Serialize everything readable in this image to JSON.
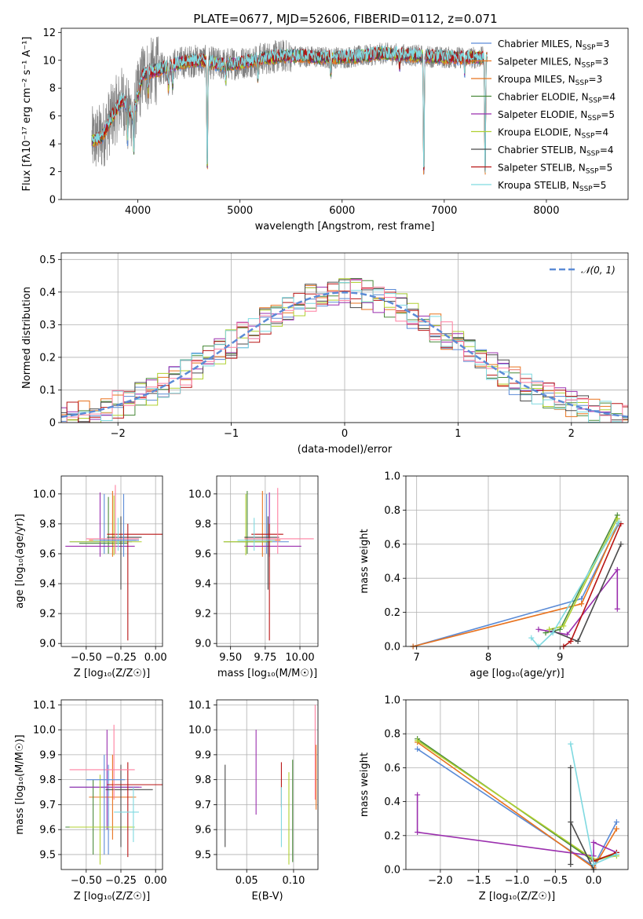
{
  "colors": [
    "#5b8bd6",
    "#e8731f",
    "#4a8a3a",
    "#9b2fae",
    "#b0d030",
    "#4a4a4a",
    "#b81414",
    "#7fd9e0",
    "#ff7fa0",
    "#808080"
  ],
  "chart_data": [
    {
      "id": "spectrum",
      "type": "line",
      "title": "PLATE=0677, MJD=52606, FIBERID=0112, z=0.071",
      "xlabel": "wavelength [Angstrom, rest frame]",
      "ylabel": "Flux [fλ10⁻¹⁷ erg cm⁻² s⁻¹ A⁻¹]",
      "xlim": [
        3250,
        8800
      ],
      "ylim": [
        0,
        12.3
      ],
      "xticks": [
        4000,
        5000,
        6000,
        7000,
        8000
      ],
      "yticks": [
        0,
        2,
        4,
        6,
        8,
        10,
        12
      ],
      "grid": false,
      "legend_position": "upper right",
      "data_series": {
        "name": "data",
        "color": "#808080"
      },
      "legend": [
        {
          "label": "Chabrier MILES, N_SSP=3",
          "color_index": 0
        },
        {
          "label": "Salpeter MILES, N_SSP=3",
          "color_index": 1
        },
        {
          "label": "Kroupa MILES, N_SSP=3",
          "color_index": 1
        },
        {
          "label": "Chabrier ELODIE, N_SSP=4",
          "color_index": 2
        },
        {
          "label": "Salpeter ELODIE, N_SSP=5",
          "color_index": 3
        },
        {
          "label": "Kroupa ELODIE, N_SSP=4",
          "color_index": 4
        },
        {
          "label": "Chabrier STELIB, N_SSP=4",
          "color_index": 5
        },
        {
          "label": "Salpeter STELIB, N_SSP=5",
          "color_index": 6
        },
        {
          "label": "Kroupa STELIB, N_SSP=5",
          "color_index": 7
        }
      ],
      "continuum_knots": [
        [
          3550,
          4.2
        ],
        [
          3650,
          4.5
        ],
        [
          3750,
          6.0
        ],
        [
          3850,
          7.2
        ],
        [
          3950,
          6.0
        ],
        [
          4050,
          9.0
        ],
        [
          4200,
          9.3
        ],
        [
          4400,
          9.8
        ],
        [
          4600,
          10.0
        ],
        [
          4800,
          9.7
        ],
        [
          5000,
          9.8
        ],
        [
          5200,
          10.1
        ],
        [
          5400,
          10.3
        ],
        [
          5600,
          10.3
        ],
        [
          5800,
          10.2
        ],
        [
          6000,
          10.2
        ],
        [
          6200,
          10.3
        ],
        [
          6400,
          10.5
        ],
        [
          6600,
          10.4
        ],
        [
          6800,
          10.3
        ],
        [
          7000,
          10.2
        ],
        [
          7200,
          10.2
        ],
        [
          7400,
          10.2
        ]
      ],
      "features": [
        [
          3900,
          -2.5
        ],
        [
          3960,
          -3.0
        ],
        [
          4102,
          -1.3
        ],
        [
          4300,
          -1.6
        ],
        [
          4340,
          -1.5
        ],
        [
          4680,
          -8.0
        ],
        [
          4861,
          -1.2
        ],
        [
          5175,
          -1.4
        ],
        [
          5890,
          -1.3
        ],
        [
          6563,
          -0.9
        ],
        [
          6800,
          -9.0
        ],
        [
          7200,
          -1.0
        ],
        [
          7400,
          -9.0
        ]
      ]
    },
    {
      "id": "residuals",
      "type": "histogram",
      "xlabel": "(data-model)/error",
      "ylabel": "Normed distribution",
      "xlim": [
        -2.5,
        2.5
      ],
      "ylim": [
        0,
        0.52
      ],
      "xticks": [
        -2,
        -1,
        0,
        1,
        2
      ],
      "yticks": [
        0.0,
        0.1,
        0.2,
        0.3,
        0.4,
        0.5
      ],
      "grid": true,
      "legend_position": "upper right",
      "legend": [
        {
          "label": "𝒩(0, 1)",
          "style": "dashed",
          "color": "#5b8bd6"
        }
      ],
      "bin_width": 0.1
    },
    {
      "id": "age-vs-Z",
      "type": "errorbar",
      "xlabel": "Z [log₁₀(Z/Z☉)]",
      "ylabel": "age  [log₁₀(age/yr)]",
      "xlim": [
        -0.68,
        0.05
      ],
      "ylim": [
        8.98,
        10.12
      ],
      "xticks": [
        -0.5,
        -0.25,
        0.0
      ],
      "xticklabels": [
        "−0.50",
        "−0.25",
        "0.00"
      ],
      "yticks": [
        9.0,
        9.2,
        9.4,
        9.6,
        9.8,
        10.0
      ],
      "yticklabels": [
        "9.0",
        "9.2",
        "9.4",
        "9.6",
        "9.8",
        "10.0"
      ],
      "grid": true,
      "points": [
        {
          "x": -0.37,
          "y": 9.68,
          "xlo": -0.62,
          "xhi": -0.17,
          "ylo": 9.6,
          "yhi": 10.0,
          "c": 0
        },
        {
          "x": -0.31,
          "y": 9.69,
          "xlo": -0.48,
          "xhi": -0.14,
          "ylo": 9.58,
          "yhi": 10.02,
          "c": 1
        },
        {
          "x": -0.34,
          "y": 9.67,
          "xlo": -0.55,
          "xhi": -0.2,
          "ylo": 9.6,
          "yhi": 9.98,
          "c": 2
        },
        {
          "x": -0.4,
          "y": 9.65,
          "xlo": -0.65,
          "xhi": -0.15,
          "ylo": 9.58,
          "yhi": 10.01,
          "c": 3
        },
        {
          "x": -0.3,
          "y": 9.68,
          "xlo": -0.62,
          "xhi": -0.1,
          "ylo": 9.59,
          "yhi": 9.99,
          "c": 4
        },
        {
          "x": -0.25,
          "y": 9.71,
          "xlo": -0.35,
          "xhi": -0.1,
          "ylo": 9.36,
          "yhi": 9.85,
          "c": 5
        },
        {
          "x": -0.2,
          "y": 9.73,
          "xlo": -0.35,
          "xhi": 0.05,
          "ylo": 9.02,
          "yhi": 9.8,
          "c": 6
        },
        {
          "x": -0.27,
          "y": 9.69,
          "xlo": -0.45,
          "xhi": -0.15,
          "ylo": 9.62,
          "yhi": 9.84,
          "c": 7
        },
        {
          "x": -0.29,
          "y": 9.7,
          "xlo": -0.5,
          "xhi": -0.12,
          "ylo": 9.6,
          "yhi": 10.06,
          "c": 8
        },
        {
          "x": -0.23,
          "y": 9.69,
          "xlo": -0.4,
          "xhi": -0.12,
          "ylo": 9.58,
          "yhi": 10.0,
          "c": 0
        }
      ]
    },
    {
      "id": "age-vs-mass",
      "type": "errorbar",
      "xlabel": "mass [log₁₀(M/M☉)]",
      "xlim": [
        9.4,
        10.13
      ],
      "ylim": [
        8.98,
        10.12
      ],
      "xticks": [
        9.5,
        9.75,
        10.0
      ],
      "xticklabels": [
        "9.50",
        "9.75",
        "10.00"
      ],
      "yticks": [
        9.0,
        9.2,
        9.4,
        9.6,
        9.8,
        10.0
      ],
      "yticklabels": [
        "9.0",
        "9.2",
        "9.4",
        "9.6",
        "9.8",
        "10.0"
      ],
      "grid": true,
      "points": [
        {
          "x": 9.76,
          "y": 9.68,
          "xlo": 9.55,
          "xhi": 9.92,
          "ylo": 9.6,
          "yhi": 10.0,
          "c": 0
        },
        {
          "x": 9.73,
          "y": 9.69,
          "xlo": 9.62,
          "xhi": 9.86,
          "ylo": 9.58,
          "yhi": 10.02,
          "c": 1
        },
        {
          "x": 9.62,
          "y": 9.68,
          "xlo": 9.45,
          "xhi": 9.78,
          "ylo": 9.6,
          "yhi": 10.02,
          "c": 2
        },
        {
          "x": 9.78,
          "y": 9.65,
          "xlo": 9.6,
          "xhi": 10.01,
          "ylo": 9.58,
          "yhi": 10.01,
          "c": 3
        },
        {
          "x": 9.61,
          "y": 9.68,
          "xlo": 9.45,
          "xhi": 9.8,
          "ylo": 9.59,
          "yhi": 10.0,
          "c": 4
        },
        {
          "x": 9.77,
          "y": 9.71,
          "xlo": 9.6,
          "xhi": 9.85,
          "ylo": 9.36,
          "yhi": 9.85,
          "c": 5
        },
        {
          "x": 9.78,
          "y": 9.73,
          "xlo": 9.65,
          "xhi": 9.88,
          "ylo": 9.02,
          "yhi": 9.8,
          "c": 6
        },
        {
          "x": 9.67,
          "y": 9.69,
          "xlo": 9.55,
          "xhi": 9.82,
          "ylo": 9.62,
          "yhi": 9.84,
          "c": 7
        },
        {
          "x": 9.84,
          "y": 9.7,
          "xlo": 9.6,
          "xhi": 10.1,
          "ylo": 9.6,
          "yhi": 10.04,
          "c": 8
        }
      ]
    },
    {
      "id": "weight-vs-age",
      "type": "line",
      "xlabel": "age  [log₁₀(age/yr)]",
      "ylabel": "mass weight",
      "xlim": [
        6.85,
        9.95
      ],
      "ylim": [
        0,
        1.0
      ],
      "xticks": [
        7,
        8,
        9
      ],
      "yticks": [
        0.0,
        0.2,
        0.4,
        0.6,
        0.8,
        1.0
      ],
      "yticklabels": [
        "0.0",
        "0.2",
        "0.4",
        "0.6",
        "0.8",
        "1.0"
      ],
      "grid": true,
      "series": [
        {
          "c": 0,
          "pts": [
            [
              6.95,
              0.0
            ],
            [
              9.3,
              0.28
            ],
            [
              9.82,
              0.72
            ]
          ]
        },
        {
          "c": 1,
          "pts": [
            [
              6.95,
              0.0
            ],
            [
              9.3,
              0.25
            ],
            [
              9.82,
              0.73
            ]
          ]
        },
        {
          "c": 2,
          "pts": [
            [
              8.8,
              0.08
            ],
            [
              9.0,
              0.1
            ],
            [
              9.8,
              0.77
            ]
          ]
        },
        {
          "c": 3,
          "pts": [
            [
              8.7,
              0.1
            ],
            [
              9.1,
              0.07
            ],
            [
              9.8,
              0.45
            ],
            [
              9.8,
              0.22
            ]
          ]
        },
        {
          "c": 4,
          "pts": [
            [
              8.85,
              0.1
            ],
            [
              9.05,
              0.12
            ],
            [
              9.8,
              0.75
            ]
          ]
        },
        {
          "c": 5,
          "pts": [
            [
              8.9,
              0.09
            ],
            [
              9.25,
              0.03
            ],
            [
              9.85,
              0.6
            ]
          ]
        },
        {
          "c": 6,
          "pts": [
            [
              9.05,
              0.0
            ],
            [
              9.15,
              0.03
            ],
            [
              9.85,
              0.72
            ]
          ]
        },
        {
          "c": 7,
          "pts": [
            [
              8.6,
              0.05
            ],
            [
              8.7,
              0.0
            ],
            [
              8.9,
              0.08
            ],
            [
              9.82,
              0.73
            ]
          ]
        }
      ]
    },
    {
      "id": "mass-vs-Z",
      "type": "errorbar",
      "xlabel": "Z [log₁₀(Z/Z☉)]",
      "ylabel": "mass [log₁₀(M/M☉)]",
      "xlim": [
        -0.68,
        0.05
      ],
      "ylim": [
        9.44,
        10.12
      ],
      "xticks": [
        -0.5,
        -0.25,
        0.0
      ],
      "xticklabels": [
        "−0.50",
        "−0.25",
        "0.00"
      ],
      "yticks": [
        9.5,
        9.6,
        9.7,
        9.8,
        9.9,
        10.0,
        10.1
      ],
      "yticklabels": [
        "9.5",
        "9.6",
        "9.7",
        "9.8",
        "9.9",
        "10.0",
        "10.1"
      ],
      "grid": true,
      "points": [
        {
          "x": -0.34,
          "y": 9.77,
          "xlo": -0.62,
          "xhi": -0.12,
          "ylo": 9.5,
          "yhi": 9.86,
          "c": 0
        },
        {
          "x": -0.31,
          "y": 9.73,
          "xlo": -0.48,
          "xhi": -0.14,
          "ylo": 9.56,
          "yhi": 9.9,
          "c": 1
        },
        {
          "x": -0.45,
          "y": 9.61,
          "xlo": -0.65,
          "xhi": -0.2,
          "ylo": 9.5,
          "yhi": 9.8,
          "c": 2
        },
        {
          "x": -0.35,
          "y": 9.77,
          "xlo": -0.62,
          "xhi": -0.1,
          "ylo": 9.6,
          "yhi": 10.0,
          "c": 3
        },
        {
          "x": -0.4,
          "y": 9.61,
          "xlo": -0.62,
          "xhi": -0.15,
          "ylo": 9.46,
          "yhi": 9.82,
          "c": 4
        },
        {
          "x": -0.25,
          "y": 9.76,
          "xlo": -0.36,
          "xhi": -0.02,
          "ylo": 9.53,
          "yhi": 9.86,
          "c": 5
        },
        {
          "x": -0.2,
          "y": 9.78,
          "xlo": -0.35,
          "xhi": 0.05,
          "ylo": 9.49,
          "yhi": 9.87,
          "c": 6
        },
        {
          "x": -0.16,
          "y": 9.67,
          "xlo": -0.3,
          "xhi": -0.12,
          "ylo": 9.55,
          "yhi": 9.77,
          "c": 7
        },
        {
          "x": -0.3,
          "y": 9.84,
          "xlo": -0.62,
          "xhi": -0.15,
          "ylo": 9.72,
          "yhi": 10.02,
          "c": 8
        },
        {
          "x": -0.37,
          "y": 9.8,
          "xlo": -0.5,
          "xhi": -0.22,
          "ylo": 9.5,
          "yhi": 9.9,
          "c": 0
        }
      ]
    },
    {
      "id": "mass-vs-ebv",
      "type": "errorbar",
      "xlabel": "E(B-V)",
      "xlim": [
        0.018,
        0.126
      ],
      "ylim": [
        9.44,
        10.12
      ],
      "xticks": [
        0.05,
        0.1
      ],
      "xticklabels": [
        "0.05",
        "0.10"
      ],
      "yticks": [
        9.5,
        9.6,
        9.7,
        9.8,
        9.9,
        10.0,
        10.1
      ],
      "yticklabels": [
        "9.5",
        "9.6",
        "9.7",
        "9.8",
        "9.9",
        "10.0",
        "10.1"
      ],
      "grid": true,
      "points": [
        {
          "x": 0.027,
          "y": 9.7,
          "ylo": 9.53,
          "yhi": 9.86,
          "c": 5
        },
        {
          "x": 0.06,
          "y": 9.83,
          "ylo": 9.66,
          "yhi": 10.0,
          "c": 3
        },
        {
          "x": 0.087,
          "y": 9.78,
          "ylo": 9.69,
          "yhi": 9.87,
          "c": 6
        },
        {
          "x": 0.087,
          "y": 9.65,
          "ylo": 9.53,
          "yhi": 9.77,
          "c": 7
        },
        {
          "x": 0.095,
          "y": 9.65,
          "ylo": 9.46,
          "yhi": 9.83,
          "c": 4
        },
        {
          "x": 0.099,
          "y": 9.67,
          "ylo": 9.47,
          "yhi": 9.88,
          "c": 2
        },
        {
          "x": 0.123,
          "y": 9.86,
          "ylo": 9.72,
          "yhi": 10.1,
          "c": 8
        },
        {
          "x": 0.124,
          "y": 9.8,
          "ylo": 9.68,
          "yhi": 9.94,
          "c": 1
        }
      ]
    },
    {
      "id": "weight-vs-Z",
      "type": "line",
      "xlabel": "Z [log₁₀(Z/Z☉)]",
      "ylabel": "mass weight",
      "xlim": [
        -2.45,
        0.45
      ],
      "ylim": [
        0,
        1.0
      ],
      "xticks": [
        -2.0,
        -1.5,
        -1.0,
        -0.5,
        0.0
      ],
      "xticklabels": [
        "−2.0",
        "−1.5",
        "−1.0",
        "−0.5",
        "0.0"
      ],
      "yticks": [
        0.0,
        0.2,
        0.4,
        0.6,
        0.8,
        1.0
      ],
      "yticklabels": [
        "0.0",
        "0.2",
        "0.4",
        "0.6",
        "0.8",
        "1.0"
      ],
      "grid": true,
      "series": [
        {
          "c": 0,
          "pts": [
            [
              -2.3,
              0.71
            ],
            [
              0.0,
              0.02
            ],
            [
              0.3,
              0.28
            ]
          ]
        },
        {
          "c": 1,
          "pts": [
            [
              -2.3,
              0.75
            ],
            [
              0.0,
              0.01
            ],
            [
              0.3,
              0.24
            ]
          ]
        },
        {
          "c": 2,
          "pts": [
            [
              -2.3,
              0.77
            ],
            [
              0.0,
              0.05
            ],
            [
              0.3,
              0.09
            ]
          ]
        },
        {
          "c": 3,
          "pts": [
            [
              -2.3,
              0.44
            ],
            [
              -2.3,
              0.22
            ],
            [
              0.0,
              0.08
            ],
            [
              0.0,
              0.16
            ],
            [
              0.3,
              0.1
            ]
          ]
        },
        {
          "c": 4,
          "pts": [
            [
              -2.3,
              0.76
            ],
            [
              0.0,
              0.06
            ],
            [
              0.3,
              0.08
            ]
          ]
        },
        {
          "c": 5,
          "pts": [
            [
              -0.3,
              0.03
            ],
            [
              -0.3,
              0.6
            ],
            [
              -0.3,
              0.28
            ],
            [
              0.0,
              0.0
            ]
          ]
        },
        {
          "c": 6,
          "pts": [
            [
              0.0,
              0.05
            ],
            [
              0.3,
              0.1
            ]
          ]
        },
        {
          "c": 7,
          "pts": [
            [
              -0.3,
              0.74
            ],
            [
              0.0,
              0.03
            ],
            [
              0.3,
              0.09
            ]
          ]
        }
      ]
    }
  ]
}
